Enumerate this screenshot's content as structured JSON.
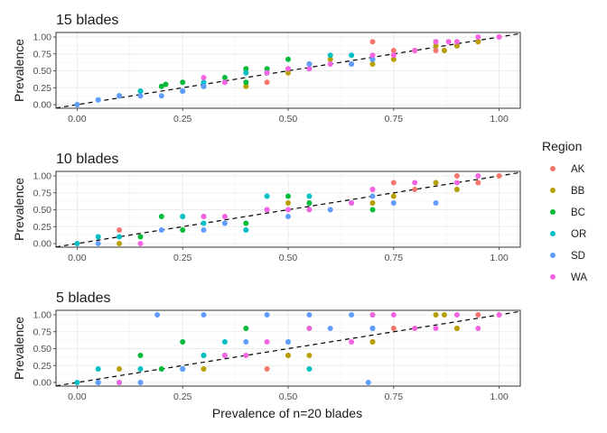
{
  "figure": {
    "xlabel": "Prevalence of n=20 blades",
    "ylabel": "Prevalence",
    "legend": {
      "title": "Region",
      "position": "right"
    }
  },
  "colors": {
    "AK": "#F8766D",
    "BB": "#B79F00",
    "BC": "#00BA38",
    "OR": "#00BFC4",
    "SD": "#619CFF",
    "WA": "#F564E3"
  },
  "chart_data": [
    {
      "type": "scatter",
      "title": "15 blades",
      "xlabel": "Prevalence of n=20 blades",
      "ylabel": "Prevalence",
      "xlim": [
        -0.05,
        1.05
      ],
      "ylim": [
        0,
        1
      ],
      "xticks": [
        "0.00",
        "0.25",
        "0.50",
        "0.75",
        "1.00"
      ],
      "yticks": [
        "0.00",
        "0.25",
        "0.50",
        "0.75",
        "1.00"
      ],
      "grid": true,
      "reference_line": "y = x (dashed)",
      "series": [
        {
          "name": "AK",
          "x": [
            0.45,
            0.7,
            0.7,
            0.75,
            0.8,
            0.85,
            0.9,
            0.95,
            1.0
          ],
          "y": [
            0.33,
            0.93,
            0.73,
            0.8,
            0.8,
            0.8,
            0.87,
            0.93,
            1.0
          ]
        },
        {
          "name": "BB",
          "x": [
            0.3,
            0.4,
            0.5,
            0.6,
            0.65,
            0.7,
            0.75,
            0.8,
            0.85,
            0.87,
            0.9,
            0.95
          ],
          "y": [
            0.27,
            0.27,
            0.47,
            0.67,
            0.6,
            0.6,
            0.67,
            0.8,
            0.87,
            0.8,
            0.87,
            0.93
          ]
        },
        {
          "name": "BC",
          "x": [
            0.1,
            0.15,
            0.2,
            0.21,
            0.25,
            0.3,
            0.35,
            0.4,
            0.4,
            0.45,
            0.5,
            0.55,
            0.7
          ],
          "y": [
            0.13,
            0.2,
            0.27,
            0.3,
            0.33,
            0.27,
            0.4,
            0.53,
            0.33,
            0.53,
            0.67,
            0.6,
            0.67
          ]
        },
        {
          "name": "OR",
          "x": [
            0.0,
            0.05,
            0.1,
            0.15,
            0.25,
            0.3,
            0.4,
            0.6,
            0.65,
            0.7
          ],
          "y": [
            0.0,
            0.07,
            0.13,
            0.2,
            0.2,
            0.33,
            0.47,
            0.73,
            0.73,
            0.67
          ]
        },
        {
          "name": "SD",
          "x": [
            0.0,
            0.05,
            0.1,
            0.15,
            0.2,
            0.25,
            0.3,
            0.35,
            0.45,
            0.5,
            0.55,
            0.6,
            0.65,
            0.7,
            0.85
          ],
          "y": [
            0.0,
            0.07,
            0.13,
            0.13,
            0.13,
            0.2,
            0.27,
            0.33,
            0.47,
            0.53,
            0.6,
            0.6,
            0.6,
            0.67,
            0.93
          ]
        },
        {
          "name": "WA",
          "x": [
            0.3,
            0.35,
            0.45,
            0.5,
            0.55,
            0.6,
            0.7,
            0.75,
            0.8,
            0.85,
            0.88,
            0.9,
            0.95,
            1.0
          ],
          "y": [
            0.4,
            0.33,
            0.47,
            0.53,
            0.53,
            0.6,
            0.73,
            0.73,
            0.8,
            0.93,
            0.93,
            0.93,
            1.0,
            1.0
          ]
        }
      ]
    },
    {
      "type": "scatter",
      "title": "10 blades",
      "xlabel": "Prevalence of n=20 blades",
      "ylabel": "Prevalence",
      "xlim": [
        -0.05,
        1.05
      ],
      "ylim": [
        0,
        1
      ],
      "xticks": [
        "0.00",
        "0.25",
        "0.50",
        "0.75",
        "1.00"
      ],
      "yticks": [
        "0.00",
        "0.25",
        "0.50",
        "0.75",
        "1.00"
      ],
      "grid": true,
      "reference_line": "y = x (dashed)",
      "series": [
        {
          "name": "AK",
          "x": [
            0.1,
            0.7,
            0.75,
            0.8,
            0.9,
            0.95,
            1.0
          ],
          "y": [
            0.2,
            0.8,
            0.9,
            0.8,
            1.0,
            0.9,
            1.0
          ]
        },
        {
          "name": "BB",
          "x": [
            0.1,
            0.5,
            0.7,
            0.75,
            0.85,
            0.9
          ],
          "y": [
            0.0,
            0.6,
            0.6,
            0.7,
            0.9,
            0.8
          ]
        },
        {
          "name": "BC",
          "x": [
            0.15,
            0.2,
            0.25,
            0.3,
            0.4,
            0.45,
            0.5,
            0.55,
            0.7
          ],
          "y": [
            0.1,
            0.4,
            0.2,
            0.4,
            0.3,
            0.5,
            0.7,
            0.6,
            0.5
          ]
        },
        {
          "name": "OR",
          "x": [
            0.0,
            0.05,
            0.1,
            0.25,
            0.3,
            0.4,
            0.45,
            0.55,
            0.65
          ],
          "y": [
            0.0,
            0.1,
            0.1,
            0.4,
            0.3,
            0.2,
            0.7,
            0.7,
            0.6
          ]
        },
        {
          "name": "SD",
          "x": [
            0.05,
            0.2,
            0.3,
            0.35,
            0.45,
            0.5,
            0.6,
            0.7,
            0.75,
            0.85
          ],
          "y": [
            0.0,
            0.2,
            0.2,
            0.3,
            0.5,
            0.4,
            0.5,
            0.7,
            0.6,
            0.6
          ]
        },
        {
          "name": "WA",
          "x": [
            0.15,
            0.3,
            0.35,
            0.45,
            0.5,
            0.55,
            0.65,
            0.7,
            0.8,
            0.9,
            0.95
          ],
          "y": [
            0.0,
            0.4,
            0.4,
            0.5,
            0.5,
            0.5,
            0.6,
            0.8,
            0.9,
            0.9,
            1.0
          ]
        }
      ]
    },
    {
      "type": "scatter",
      "title": "5 blades",
      "xlabel": "Prevalence of n=20 blades",
      "ylabel": "Prevalence",
      "xlim": [
        -0.05,
        1.05
      ],
      "ylim": [
        0,
        1
      ],
      "xticks": [
        "0.00",
        "0.25",
        "0.50",
        "0.75",
        "1.00"
      ],
      "yticks": [
        "0.00",
        "0.25",
        "0.50",
        "0.75",
        "1.00"
      ],
      "grid": true,
      "reference_line": "y = x (dashed)",
      "series": [
        {
          "name": "AK",
          "x": [
            0.45,
            0.5,
            0.7,
            0.75,
            0.8,
            0.9,
            0.95,
            1.0
          ],
          "y": [
            0.2,
            0.4,
            0.6,
            0.8,
            0.8,
            0.8,
            1.0,
            1.0
          ]
        },
        {
          "name": "BB",
          "x": [
            0.1,
            0.3,
            0.5,
            0.55,
            0.7,
            0.85,
            0.87,
            0.9
          ],
          "y": [
            0.2,
            0.2,
            0.4,
            0.4,
            0.6,
            1.0,
            1.0,
            0.8
          ]
        },
        {
          "name": "BC",
          "x": [
            0.05,
            0.1,
            0.15,
            0.2,
            0.25,
            0.3,
            0.4,
            0.5,
            0.55,
            0.7
          ],
          "y": [
            0.0,
            0.0,
            0.4,
            0.2,
            0.6,
            0.4,
            0.8,
            0.6,
            0.8,
            1.0
          ]
        },
        {
          "name": "OR",
          "x": [
            0.0,
            0.05,
            0.1,
            0.15,
            0.25,
            0.3,
            0.35,
            0.55,
            0.7
          ],
          "y": [
            0.0,
            0.2,
            0.0,
            0.2,
            0.2,
            0.4,
            0.6,
            0.2,
            0.8
          ]
        },
        {
          "name": "SD",
          "x": [
            0.05,
            0.15,
            0.19,
            0.25,
            0.3,
            0.35,
            0.4,
            0.45,
            0.5,
            0.55,
            0.6,
            0.65,
            0.69,
            0.7
          ],
          "y": [
            0.0,
            0.0,
            1.0,
            0.2,
            1.0,
            0.4,
            0.6,
            1.0,
            0.6,
            1.0,
            0.8,
            1.0,
            0.0,
            0.8
          ]
        },
        {
          "name": "WA",
          "x": [
            0.1,
            0.35,
            0.4,
            0.45,
            0.55,
            0.65,
            0.7,
            0.75,
            0.8,
            0.85,
            0.9,
            0.95,
            1.0
          ],
          "y": [
            0.0,
            0.4,
            0.4,
            0.6,
            0.8,
            0.6,
            1.0,
            1.0,
            0.8,
            0.8,
            1.0,
            0.8,
            1.0
          ]
        }
      ]
    }
  ]
}
